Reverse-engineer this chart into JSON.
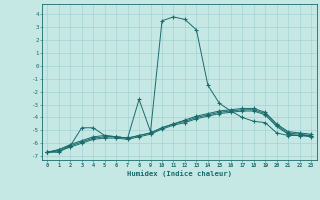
{
  "xlabel": "Humidex (Indice chaleur)",
  "bg_color": "#c5e8e5",
  "grid_color": "#9ecece",
  "line_color": "#1a6b6b",
  "xlim_min": -0.5,
  "xlim_max": 23.5,
  "ylim_min": -7.3,
  "ylim_max": 4.8,
  "yticks": [
    -7,
    -6,
    -5,
    -4,
    -3,
    -2,
    -1,
    0,
    1,
    2,
    3,
    4
  ],
  "xticks": [
    0,
    1,
    2,
    3,
    4,
    5,
    6,
    7,
    8,
    9,
    10,
    11,
    12,
    13,
    14,
    15,
    16,
    17,
    18,
    19,
    20,
    21,
    22,
    23
  ],
  "line1_x": [
    0,
    1,
    2,
    3,
    4,
    5,
    6,
    7,
    8,
    9,
    10,
    11,
    12,
    13,
    14,
    15,
    16,
    17,
    18,
    19,
    20,
    21,
    22,
    23
  ],
  "line1_y": [
    -6.7,
    -6.7,
    -6.2,
    -4.8,
    -4.8,
    -5.4,
    -5.5,
    -5.6,
    -2.6,
    -5.1,
    3.5,
    3.8,
    3.6,
    2.8,
    -1.5,
    -2.9,
    -3.5,
    -4.0,
    -4.3,
    -4.4,
    -5.2,
    -5.4,
    -5.4,
    -5.4
  ],
  "line2_x": [
    0,
    1,
    2,
    3,
    4,
    5,
    6,
    7,
    8,
    9,
    10,
    11,
    12,
    13,
    14,
    15,
    16,
    17,
    18,
    19,
    20,
    21,
    22,
    23
  ],
  "line2_y": [
    -6.7,
    -6.5,
    -6.1,
    -5.8,
    -5.5,
    -5.4,
    -5.5,
    -5.6,
    -5.4,
    -5.2,
    -4.8,
    -4.5,
    -4.2,
    -3.9,
    -3.7,
    -3.5,
    -3.4,
    -3.3,
    -3.3,
    -3.6,
    -4.5,
    -5.1,
    -5.2,
    -5.3
  ],
  "line3_x": [
    0,
    1,
    2,
    3,
    4,
    5,
    6,
    7,
    8,
    9,
    10,
    11,
    12,
    13,
    14,
    15,
    16,
    17,
    18,
    19,
    20,
    21,
    22,
    23
  ],
  "line3_y": [
    -6.7,
    -6.5,
    -6.2,
    -5.9,
    -5.6,
    -5.5,
    -5.5,
    -5.6,
    -5.4,
    -5.2,
    -4.8,
    -4.5,
    -4.3,
    -4.0,
    -3.8,
    -3.6,
    -3.5,
    -3.4,
    -3.4,
    -3.7,
    -4.6,
    -5.2,
    -5.3,
    -5.4
  ],
  "line4_x": [
    0,
    1,
    2,
    3,
    4,
    5,
    6,
    7,
    8,
    9,
    10,
    11,
    12,
    13,
    14,
    15,
    16,
    17,
    18,
    19,
    20,
    21,
    22,
    23
  ],
  "line4_y": [
    -6.7,
    -6.6,
    -6.3,
    -6.0,
    -5.7,
    -5.6,
    -5.6,
    -5.7,
    -5.5,
    -5.3,
    -4.9,
    -4.6,
    -4.4,
    -4.1,
    -3.9,
    -3.7,
    -3.6,
    -3.5,
    -3.5,
    -3.8,
    -4.7,
    -5.3,
    -5.4,
    -5.5
  ]
}
